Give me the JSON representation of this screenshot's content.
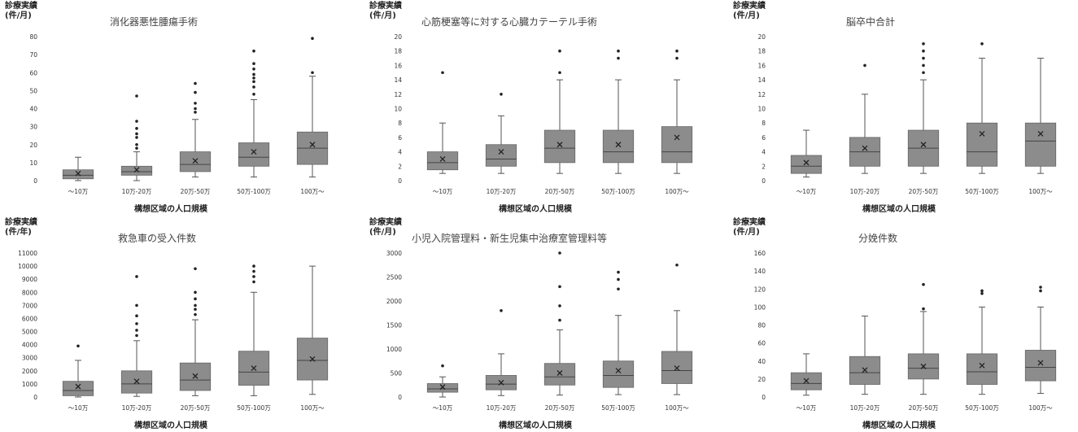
{
  "chart_data": [
    {
      "type": "box",
      "title": "消化器悪性腫瘍手術",
      "ylabel": "診療実績\n(件/月)",
      "xlabel": "構想区域の人口規模",
      "ylim": [
        0,
        80
      ],
      "yticks": [
        0,
        10,
        20,
        30,
        40,
        50,
        60,
        70,
        80
      ],
      "categories": [
        "～10万",
        "10万-20万",
        "20万-50万",
        "50万-100万",
        "100万～"
      ],
      "boxes": [
        {
          "min": 0,
          "q1": 1,
          "median": 3,
          "q3": 6,
          "max": 13,
          "mean": 4,
          "outliers": []
        },
        {
          "min": 0,
          "q1": 3,
          "median": 5,
          "q3": 8,
          "max": 16,
          "mean": 6,
          "outliers": [
            18,
            20,
            24,
            26,
            29,
            33,
            47
          ]
        },
        {
          "min": 2,
          "q1": 5,
          "median": 9,
          "q3": 16,
          "max": 34,
          "mean": 11,
          "outliers": [
            38,
            40,
            43,
            49,
            54
          ]
        },
        {
          "min": 2,
          "q1": 8,
          "median": 13,
          "q3": 21,
          "max": 45,
          "mean": 16,
          "outliers": [
            48,
            52,
            55,
            57,
            59,
            62,
            65,
            72
          ]
        },
        {
          "min": 2,
          "q1": 9,
          "median": 18,
          "q3": 27,
          "max": 58,
          "mean": 20,
          "outliers": [
            60,
            79
          ]
        }
      ],
      "color": "#8c8c8c"
    },
    {
      "type": "box",
      "title": "心筋梗塞等に対する心臓カテーテル手術",
      "ylabel": "診療実績\n(件/月)",
      "xlabel": "構想区域の人口規模",
      "ylim": [
        0,
        20
      ],
      "yticks": [
        0,
        2,
        4,
        6,
        8,
        10,
        12,
        14,
        16,
        18,
        20
      ],
      "categories": [
        "～10万",
        "10万-20万",
        "20万-50万",
        "50万-100万",
        "100万～"
      ],
      "boxes": [
        {
          "min": 1,
          "q1": 1.5,
          "median": 2.5,
          "q3": 4,
          "max": 8,
          "mean": 3,
          "outliers": [
            15
          ]
        },
        {
          "min": 1,
          "q1": 2,
          "median": 3,
          "q3": 5,
          "max": 9,
          "mean": 4,
          "outliers": [
            12
          ]
        },
        {
          "min": 1,
          "q1": 2.5,
          "median": 4.5,
          "q3": 7,
          "max": 14,
          "mean": 5,
          "outliers": [
            15,
            18
          ]
        },
        {
          "min": 1,
          "q1": 2.5,
          "median": 4,
          "q3": 7,
          "max": 14,
          "mean": 5,
          "outliers": [
            17,
            18
          ]
        },
        {
          "min": 1,
          "q1": 2.5,
          "median": 4,
          "q3": 7.5,
          "max": 14,
          "mean": 6,
          "outliers": [
            17,
            18
          ]
        }
      ],
      "color": "#8c8c8c"
    },
    {
      "type": "box",
      "title": "脳卒中合計",
      "ylabel": "診療実績\n(件/月)",
      "xlabel": "構想区域の人口規模",
      "ylim": [
        0,
        20
      ],
      "yticks": [
        0,
        2,
        4,
        6,
        8,
        10,
        12,
        14,
        16,
        18,
        20
      ],
      "categories": [
        "～10万",
        "10万-20万",
        "20万-50万",
        "50万-100万",
        "100万～"
      ],
      "boxes": [
        {
          "min": 0.5,
          "q1": 1,
          "median": 2,
          "q3": 3.5,
          "max": 7,
          "mean": 2.5,
          "outliers": []
        },
        {
          "min": 1,
          "q1": 2,
          "median": 4,
          "q3": 6,
          "max": 12,
          "mean": 4.5,
          "outliers": [
            16
          ]
        },
        {
          "min": 1,
          "q1": 2,
          "median": 4.5,
          "q3": 7,
          "max": 14,
          "mean": 5,
          "outliers": [
            15,
            16,
            17,
            18,
            19
          ]
        },
        {
          "min": 1,
          "q1": 2,
          "median": 4,
          "q3": 8,
          "max": 17,
          "mean": 6.5,
          "outliers": [
            19
          ]
        },
        {
          "min": 1,
          "q1": 2,
          "median": 5.5,
          "q3": 8,
          "max": 17,
          "mean": 6.5,
          "outliers": []
        }
      ],
      "color": "#8c8c8c"
    },
    {
      "type": "box",
      "title": "救急車の受入件数",
      "ylabel": "診療実績\n(件/年)",
      "xlabel": "構想区域の人口規模",
      "ylim": [
        0,
        11000
      ],
      "yticks": [
        0,
        1000,
        2000,
        3000,
        4000,
        5000,
        6000,
        7000,
        8000,
        9000,
        10000,
        11000
      ],
      "categories": [
        "～10万",
        "10万-20万",
        "20万-50万",
        "50万-100万",
        "100万～"
      ],
      "boxes": [
        {
          "min": 0,
          "q1": 100,
          "median": 500,
          "q3": 1200,
          "max": 2800,
          "mean": 800,
          "outliers": [
            3900
          ]
        },
        {
          "min": 50,
          "q1": 300,
          "median": 1000,
          "q3": 2000,
          "max": 4300,
          "mean": 1200,
          "outliers": [
            4700,
            5100,
            5600,
            6200,
            7000,
            9200
          ]
        },
        {
          "min": 100,
          "q1": 500,
          "median": 1300,
          "q3": 2600,
          "max": 5900,
          "mean": 1600,
          "outliers": [
            6300,
            6700,
            7000,
            7500,
            8000,
            9800
          ]
        },
        {
          "min": 100,
          "q1": 900,
          "median": 1900,
          "q3": 3500,
          "max": 8000,
          "mean": 2200,
          "outliers": [
            8800,
            9200,
            9600,
            10000
          ]
        },
        {
          "min": 200,
          "q1": 1300,
          "median": 2800,
          "q3": 4500,
          "max": 10000,
          "mean": 2900,
          "outliers": []
        }
      ],
      "color": "#8c8c8c"
    },
    {
      "type": "box",
      "title": "小児入院管理料・新生児集中治療室管理料等",
      "ylabel": "診療実績\n(件/月)",
      "xlabel": "構想区域の人口規模",
      "ylim": [
        0,
        3000
      ],
      "yticks": [
        0,
        500,
        1000,
        1500,
        2000,
        2500,
        3000
      ],
      "categories": [
        "～10万",
        "10万-20万",
        "20万-50万",
        "50万-100万",
        "100万～"
      ],
      "boxes": [
        {
          "min": 0,
          "q1": 100,
          "median": 170,
          "q3": 280,
          "max": 420,
          "mean": 210,
          "outliers": [
            650
          ]
        },
        {
          "min": 30,
          "q1": 150,
          "median": 270,
          "q3": 450,
          "max": 900,
          "mean": 300,
          "outliers": [
            1800
          ]
        },
        {
          "min": 40,
          "q1": 250,
          "median": 420,
          "q3": 700,
          "max": 1400,
          "mean": 500,
          "outliers": [
            1600,
            1900,
            2300,
            3000
          ]
        },
        {
          "min": 50,
          "q1": 200,
          "median": 450,
          "q3": 750,
          "max": 1700,
          "mean": 550,
          "outliers": [
            2250,
            2450,
            2600
          ]
        },
        {
          "min": 50,
          "q1": 280,
          "median": 550,
          "q3": 950,
          "max": 1800,
          "mean": 600,
          "outliers": [
            2750
          ]
        }
      ],
      "color": "#8c8c8c"
    },
    {
      "type": "box",
      "title": "分娩件数",
      "ylabel": "診療実績\n(件/月)",
      "xlabel": "構想区域の人口規模",
      "ylim": [
        0,
        160
      ],
      "yticks": [
        0,
        20,
        40,
        60,
        80,
        100,
        120,
        140,
        160
      ],
      "categories": [
        "～10万",
        "10万-20万",
        "20万-50万",
        "50万-100万",
        "100万～"
      ],
      "boxes": [
        {
          "min": 2,
          "q1": 8,
          "median": 15,
          "q3": 27,
          "max": 48,
          "mean": 18,
          "outliers": []
        },
        {
          "min": 3,
          "q1": 14,
          "median": 27,
          "q3": 45,
          "max": 90,
          "mean": 30,
          "outliers": []
        },
        {
          "min": 3,
          "q1": 20,
          "median": 32,
          "q3": 48,
          "max": 95,
          "mean": 34,
          "outliers": [
            98,
            125
          ]
        },
        {
          "min": 3,
          "q1": 14,
          "median": 28,
          "q3": 48,
          "max": 100,
          "mean": 35,
          "outliers": [
            115,
            118
          ]
        },
        {
          "min": 4,
          "q1": 18,
          "median": 33,
          "q3": 52,
          "max": 100,
          "mean": 38,
          "outliers": [
            118,
            122
          ]
        }
      ],
      "color": "#8c8c8c"
    }
  ]
}
